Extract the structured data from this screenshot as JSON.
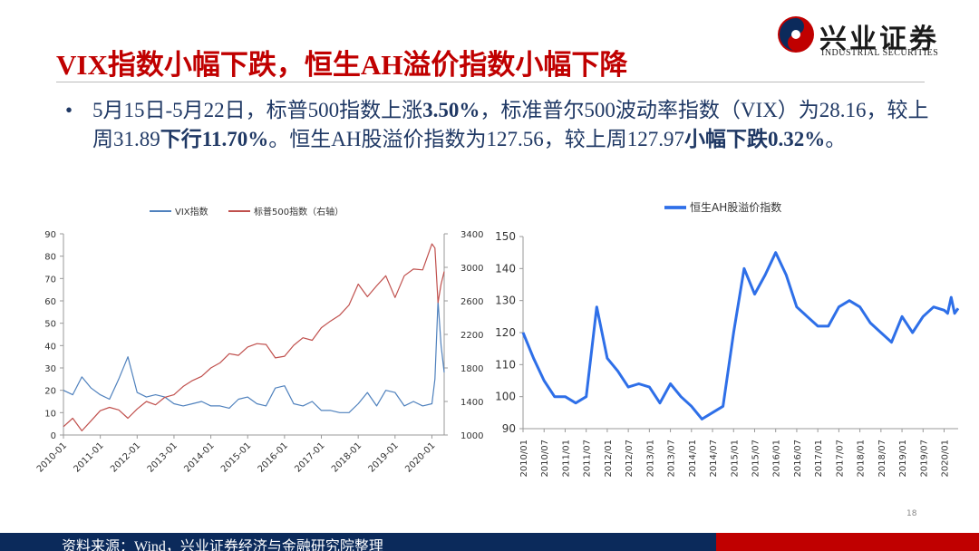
{
  "header": {
    "title": "VIX指数小幅下跌，恒生AH溢价指数小幅下降",
    "logo_cn": "兴业证券",
    "logo_en": "INDUSTRIAL SECURITIES"
  },
  "bullet": {
    "marker": "•",
    "segments": [
      {
        "text": "5月15日-5月22日，标普500指数上涨",
        "bold": false
      },
      {
        "text": "3.50%",
        "bold": true
      },
      {
        "text": "，标准普尔500波动率指数（VIX）为28.16，较上周31.89",
        "bold": false
      },
      {
        "text": "下行11.70%",
        "bold": true
      },
      {
        "text": "。恒生AH股溢价指数为127.56，较上周127.97",
        "bold": false
      },
      {
        "text": "小幅下跌0.32%",
        "bold": true
      },
      {
        "text": "。",
        "bold": false
      }
    ]
  },
  "chart_data": [
    {
      "type": "line",
      "x": [
        "2010-01",
        "2010-04",
        "2010-07",
        "2010-10",
        "2011-01",
        "2011-04",
        "2011-07",
        "2011-10",
        "2012-01",
        "2012-04",
        "2012-07",
        "2012-10",
        "2013-01",
        "2013-04",
        "2013-07",
        "2013-10",
        "2014-01",
        "2014-04",
        "2014-07",
        "2014-10",
        "2015-01",
        "2015-04",
        "2015-07",
        "2015-10",
        "2016-01",
        "2016-04",
        "2016-07",
        "2016-10",
        "2017-01",
        "2017-04",
        "2017-07",
        "2017-10",
        "2018-01",
        "2018-04",
        "2018-07",
        "2018-10",
        "2019-01",
        "2019-04",
        "2019-07",
        "2019-10",
        "2020-01",
        "2020-02",
        "2020-03",
        "2020-04",
        "2020-05"
      ],
      "series": [
        {
          "name": "VIX指数",
          "color": "#4f81bd",
          "values": [
            20,
            18,
            26,
            21,
            18,
            16,
            25,
            35,
            19,
            17,
            18,
            17,
            14,
            13,
            14,
            15,
            13,
            13,
            12,
            16,
            17,
            14,
            13,
            21,
            22,
            14,
            13,
            15,
            11,
            11,
            10,
            10,
            14,
            19,
            13,
            20,
            19,
            13,
            15,
            13,
            14,
            25,
            60,
            40,
            28
          ]
        },
        {
          "name": "标普500指数（右轴）",
          "color": "#c0504d",
          "axis": "y2",
          "values": [
            1100,
            1200,
            1050,
            1170,
            1290,
            1330,
            1300,
            1200,
            1310,
            1400,
            1360,
            1450,
            1480,
            1580,
            1650,
            1700,
            1800,
            1860,
            1970,
            1950,
            2050,
            2090,
            2080,
            1920,
            1940,
            2070,
            2160,
            2130,
            2280,
            2360,
            2430,
            2550,
            2800,
            2650,
            2780,
            2900,
            2640,
            2900,
            2980,
            2970,
            3280,
            3230,
            2580,
            2800,
            2950
          ]
        }
      ],
      "ylim": [
        0,
        90
      ],
      "yticks": [
        0,
        10,
        20,
        30,
        40,
        50,
        60,
        70,
        80,
        90
      ],
      "y2lim": [
        1000,
        3400
      ],
      "y2ticks": [
        1000,
        1400,
        1800,
        2200,
        2600,
        3000,
        3400
      ],
      "xticks": [
        "2010-01",
        "2011-01",
        "2012-01",
        "2013-01",
        "2014-01",
        "2015-01",
        "2016-01",
        "2017-01",
        "2018-01",
        "2019-01",
        "2020-01"
      ]
    },
    {
      "type": "line",
      "x": [
        "2010/01",
        "2010/04",
        "2010/07",
        "2010/10",
        "2011/01",
        "2011/04",
        "2011/07",
        "2011/10",
        "2012/01",
        "2012/04",
        "2012/07",
        "2012/10",
        "2013/01",
        "2013/04",
        "2013/07",
        "2013/10",
        "2014/01",
        "2014/04",
        "2014/07",
        "2014/10",
        "2015/01",
        "2015/04",
        "2015/07",
        "2015/10",
        "2016/01",
        "2016/04",
        "2016/07",
        "2016/10",
        "2017/01",
        "2017/04",
        "2017/07",
        "2017/10",
        "2018/01",
        "2018/04",
        "2018/07",
        "2018/10",
        "2019/01",
        "2019/04",
        "2019/07",
        "2019/10",
        "2020/01",
        "2020/02",
        "2020/03",
        "2020/04",
        "2020/05"
      ],
      "series": [
        {
          "name": "恒生AH股溢价指数",
          "color": "#2e6fe8",
          "values": [
            120,
            112,
            105,
            100,
            100,
            98,
            100,
            128,
            112,
            108,
            103,
            104,
            103,
            98,
            104,
            100,
            97,
            93,
            95,
            97,
            120,
            140,
            132,
            138,
            145,
            138,
            128,
            125,
            122,
            122,
            128,
            130,
            128,
            123,
            120,
            117,
            125,
            120,
            125,
            128,
            127,
            126,
            131,
            126,
            127.56
          ]
        }
      ],
      "ylim": [
        90,
        150
      ],
      "yticks": [
        90,
        100,
        110,
        120,
        130,
        140,
        150
      ],
      "xticks": [
        "2010/01",
        "2010/07",
        "2011/01",
        "2011/07",
        "2012/01",
        "2012/07",
        "2013/01",
        "2013/07",
        "2014/01",
        "2014/07",
        "2015/01",
        "2015/07",
        "2016/01",
        "2016/07",
        "2017/01",
        "2017/07",
        "2018/01",
        "2018/07",
        "2019/01",
        "2019/07",
        "2020/01"
      ]
    }
  ],
  "footer": {
    "source": "资料来源：Wind，兴业证券经济与金融研究院整理",
    "page": "18"
  }
}
